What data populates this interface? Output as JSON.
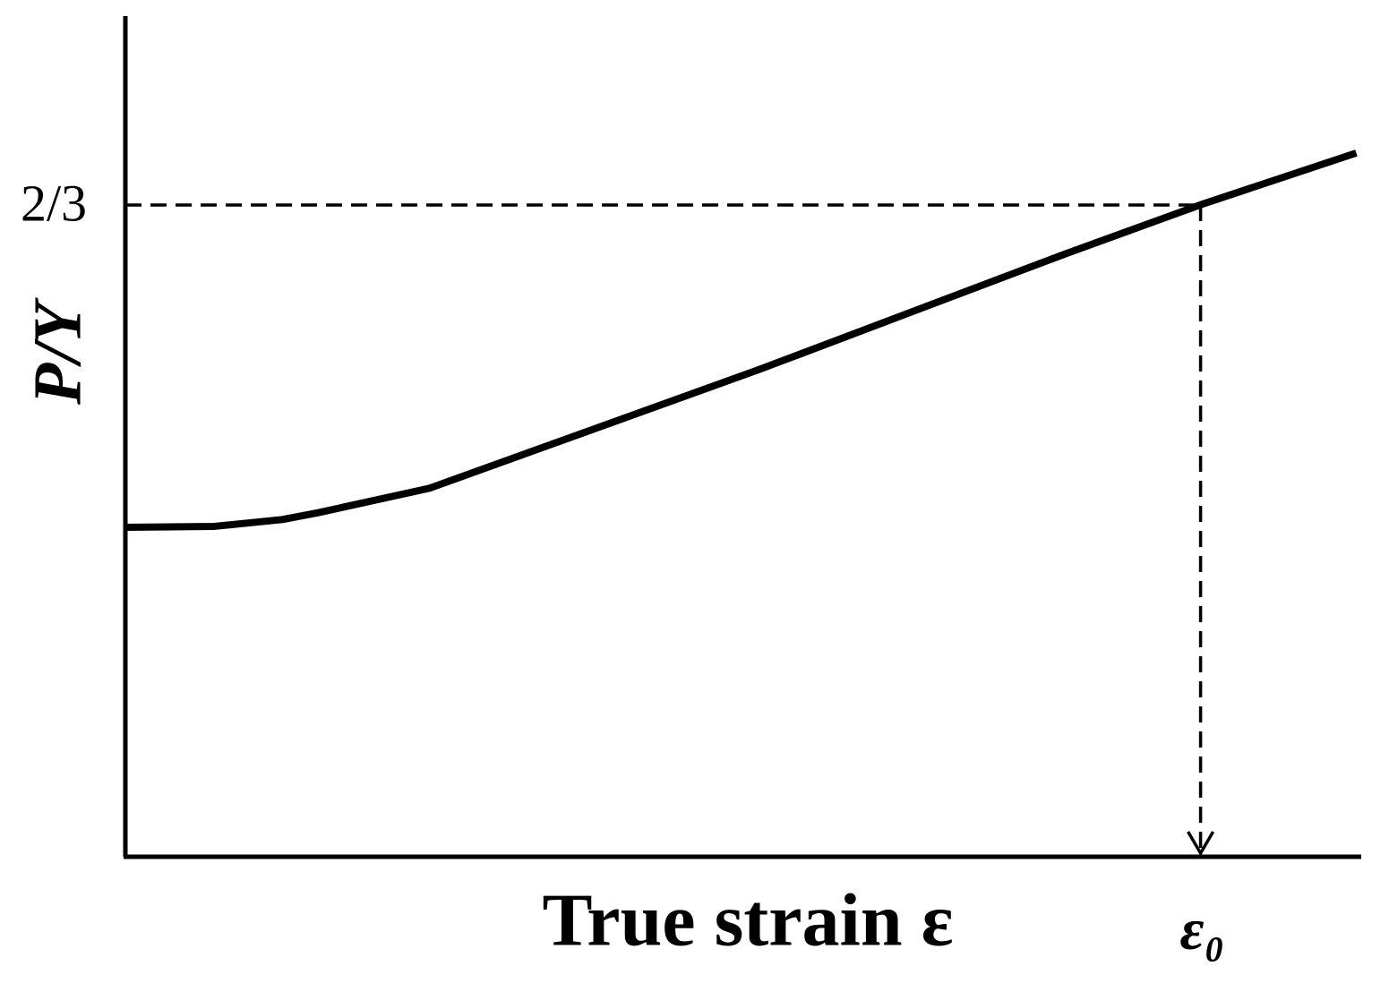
{
  "chart_data": {
    "type": "line",
    "x_label": "True strain ε",
    "y_label": "P/Y",
    "x": [
      0,
      0.072,
      0.127,
      0.156,
      0.246,
      0.514,
      0.761,
      0.87,
      0.996
    ],
    "values": [
      0.337,
      0.338,
      0.345,
      0.352,
      0.377,
      0.499,
      0.617,
      0.667,
      0.72
    ],
    "color": "#000000",
    "xlim": [
      0,
      1
    ],
    "ylim": [
      0,
      0.86
    ],
    "xticks": [
      {
        "value": 0.87,
        "label": "ε₀"
      }
    ],
    "yticks": [
      {
        "value": 0.6667,
        "label": "2/3"
      }
    ]
  }
}
